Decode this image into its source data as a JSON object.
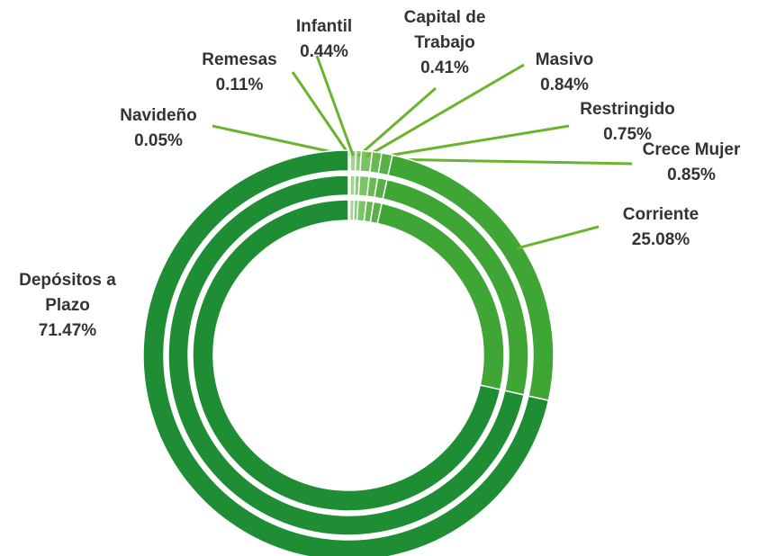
{
  "chart_data": {
    "type": "donut",
    "categories": [
      "Navideño",
      "Remesas",
      "Infantil",
      "Capital de Trabajo",
      "Masivo",
      "Restringido",
      "Crece Mujer",
      "Corriente",
      "Depósitos a Plazo"
    ],
    "values": [
      0.05,
      0.11,
      0.44,
      0.41,
      0.84,
      0.75,
      0.85,
      25.08,
      71.47
    ],
    "value_labels": [
      "0.05%",
      "0.11%",
      "0.44%",
      "0.41%",
      "0.84%",
      "0.75%",
      "0.85%",
      "25.08%",
      "71.47%"
    ],
    "colors": [
      "#c8e6c0",
      "#b5dca8",
      "#a3d492",
      "#8ecb7b",
      "#7cc266",
      "#69b955",
      "#58b046",
      "#3fa535",
      "#1f8d34"
    ]
  }
}
